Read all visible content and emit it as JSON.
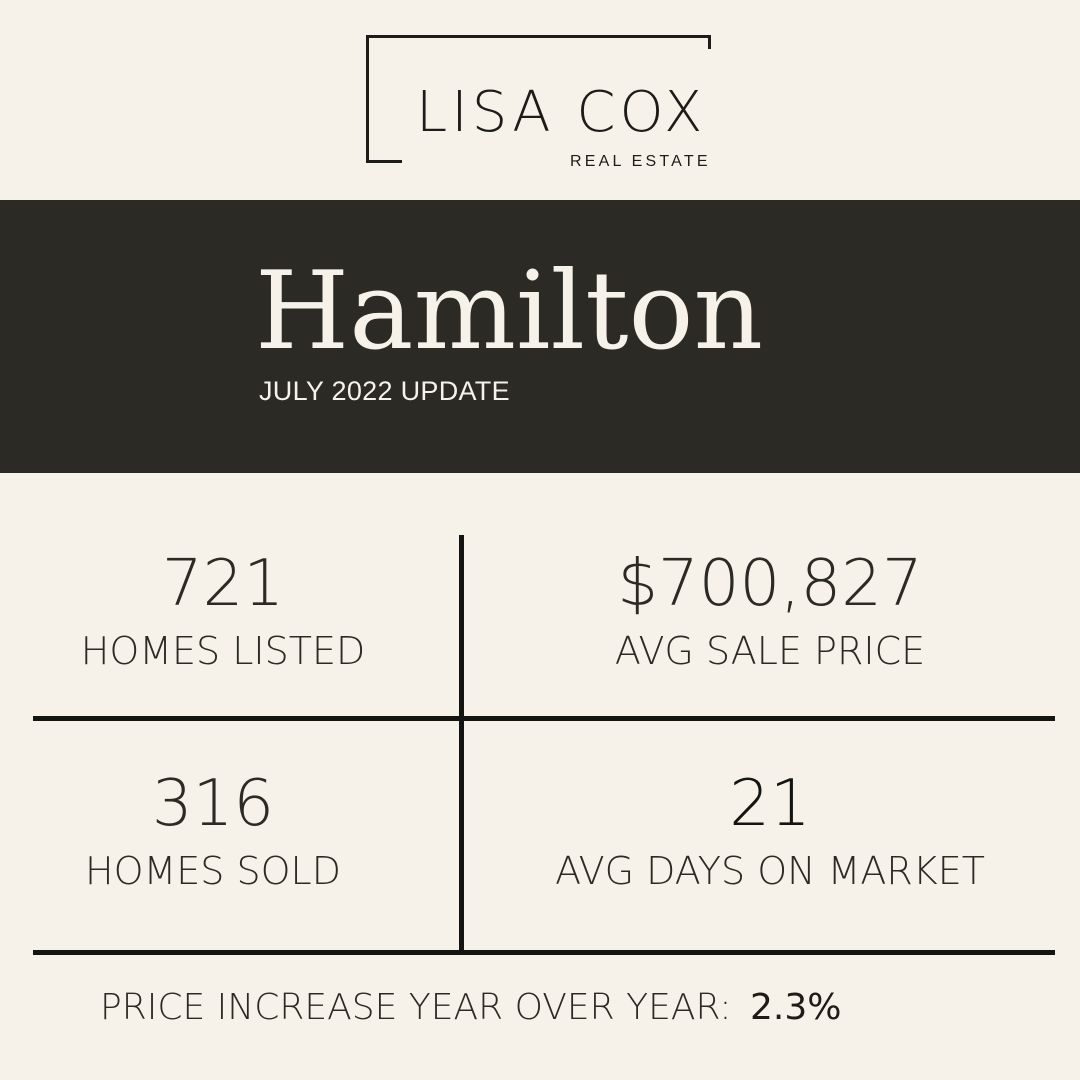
{
  "logo": {
    "name": "LISA COX",
    "tagline": "REAL ESTATE"
  },
  "banner": {
    "title": "Hamilton",
    "subtitle": "JULY 2022 UPDATE"
  },
  "stats": [
    {
      "value": "721",
      "label": "HOMES LISTED"
    },
    {
      "value": "$700,827",
      "label": "AVG SALE PRICE"
    },
    {
      "value": "316",
      "label": "HOMES SOLD"
    },
    {
      "value": "21",
      "label": "AVG DAYS ON MARKET"
    }
  ],
  "footer": {
    "label": "PRICE INCREASE YEAR OVER YEAR:",
    "value": "2.3%"
  },
  "colors": {
    "background": "#f6f2e9",
    "banner": "#2b2a25",
    "text": "#2b2a25",
    "rules": "#141412"
  }
}
